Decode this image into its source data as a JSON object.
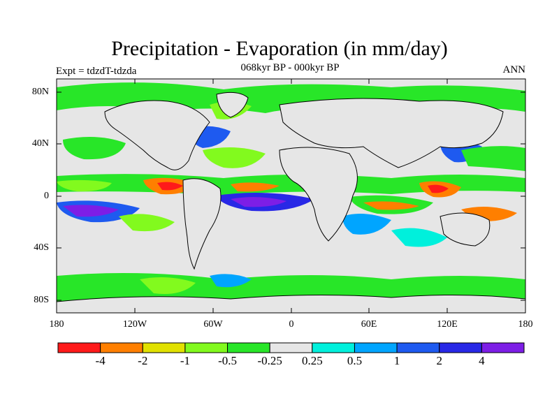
{
  "title": "Precipitation - Evaporation (in mm/day)",
  "subtitle": "068kyr BP - 000kyr BP",
  "left_label": "Expt = tdzdT-tdzda",
  "right_label": "ANN",
  "lat_ticks": [
    "80N",
    "40N",
    "0",
    "40S",
    "80S"
  ],
  "lon_ticks": [
    "180",
    "120W",
    "60W",
    "0",
    "60E",
    "120E",
    "180"
  ],
  "colorbar": {
    "colors": [
      "#ff1a1a",
      "#ff7f00",
      "#e1e100",
      "#82fa1e",
      "#28e628",
      "#e6e6e6",
      "#00f0dc",
      "#00a5ff",
      "#1e5af0",
      "#2828e6",
      "#7d1ee6"
    ],
    "labels": [
      "-4",
      "-2",
      "-1",
      "-0.5",
      "-0.25",
      "0.25",
      "0.5",
      "1",
      "2",
      "4"
    ]
  },
  "colors": {
    "ocean_background": "#e6e6e6",
    "coast": "#000000"
  }
}
